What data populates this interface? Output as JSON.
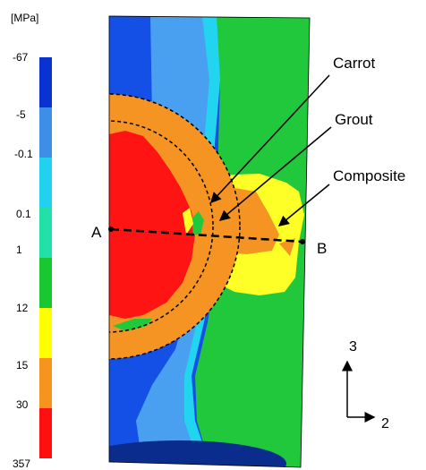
{
  "legend": {
    "unit": "[MPa]",
    "ticks": [
      "-67",
      "-5",
      "-0.1",
      "0.1",
      "1",
      "12",
      "15",
      "30",
      "357"
    ],
    "colors": [
      "#0a32d2",
      "#3c8ee6",
      "#22d0f0",
      "#22e0a8",
      "#18c830",
      "#ffff00",
      "#f7941d",
      "#ff1010"
    ]
  },
  "colors": {
    "blue": "#1450e6",
    "light_blue": "#4aa0f0",
    "cyan": "#22d4f0",
    "green": "#22c83c",
    "yellow": "#ffff28",
    "orange": "#f59422",
    "red": "#ff1414",
    "dark": "#0a2c8c"
  },
  "callouts": {
    "carrot": "Carrot",
    "grout": "Grout",
    "composite": "Composite"
  },
  "section_line": {
    "start": "A",
    "end": "B"
  },
  "axes": {
    "vertical": "3",
    "horizontal": "2"
  }
}
